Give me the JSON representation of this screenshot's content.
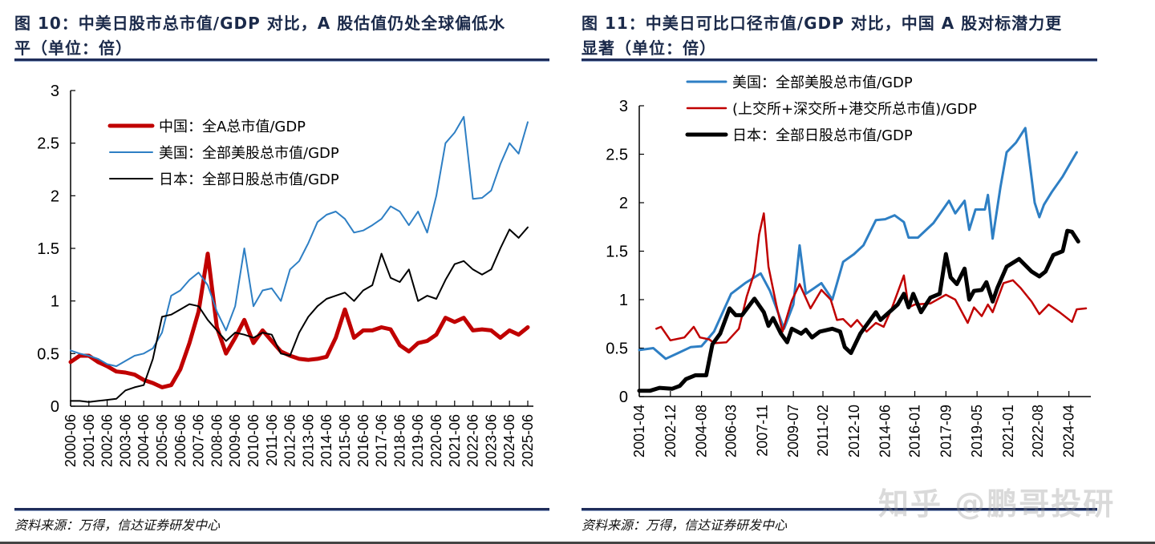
{
  "left": {
    "title_line1": "图 10：中美日股市总市值/GDP 对比，A 股估值仍处全球偏低水",
    "title_line2": "平（单位：倍）",
    "source": "资料来源：万得，信达证券研发中心"
  },
  "right": {
    "title_line1": "图 11：中美日可比口径市值/GDP 对比，中国 A 股对标潜力更",
    "title_line2": "显著（单位：倍）",
    "source": "资料来源：万得，信达证券研发中心"
  },
  "watermark": "知乎 @鹏哥投研",
  "chart_data": [
    {
      "type": "line",
      "ylim": [
        0,
        3
      ],
      "yticks": [
        "0",
        "0.5",
        "1",
        "1.5",
        "2",
        "2.5",
        "3"
      ],
      "xlim": [
        "2000-06",
        "2025-06"
      ],
      "xticks": [
        "2000-06",
        "2001-06",
        "2002-06",
        "2003-06",
        "2004-06",
        "2005-06",
        "2006-06",
        "2007-06",
        "2008-06",
        "2009-06",
        "2010-06",
        "2011-06",
        "2012-06",
        "2013-06",
        "2014-06",
        "2015-06",
        "2016-06",
        "2017-06",
        "2018-06",
        "2019-06",
        "2020-06",
        "2021-06",
        "2022-06",
        "2023-06",
        "2024-06",
        "2025-06"
      ],
      "legend_placement": "top-left",
      "x": [
        "2000-06",
        "2000-12",
        "2001-06",
        "2001-12",
        "2002-06",
        "2002-12",
        "2003-06",
        "2003-12",
        "2004-06",
        "2004-12",
        "2005-06",
        "2005-12",
        "2006-06",
        "2006-12",
        "2007-06",
        "2007-12",
        "2008-06",
        "2008-12",
        "2009-06",
        "2009-12",
        "2010-06",
        "2010-12",
        "2011-06",
        "2011-12",
        "2012-06",
        "2012-12",
        "2013-06",
        "2013-12",
        "2014-06",
        "2014-12",
        "2015-06",
        "2015-12",
        "2016-06",
        "2016-12",
        "2017-06",
        "2017-12",
        "2018-06",
        "2018-12",
        "2019-06",
        "2019-12",
        "2020-06",
        "2020-12",
        "2021-06",
        "2021-12",
        "2022-06",
        "2022-12",
        "2023-06",
        "2023-12",
        "2024-06",
        "2024-12",
        "2025-06"
      ],
      "series": [
        {
          "name": "中国：全A总市值/GDP",
          "color": "#c00000",
          "width": 5,
          "values": [
            0.42,
            0.48,
            0.48,
            0.42,
            0.38,
            0.33,
            0.32,
            0.3,
            0.25,
            0.22,
            0.18,
            0.2,
            0.35,
            0.6,
            0.9,
            1.45,
            0.75,
            0.5,
            0.65,
            0.82,
            0.6,
            0.72,
            0.62,
            0.52,
            0.48,
            0.45,
            0.44,
            0.45,
            0.47,
            0.65,
            0.92,
            0.65,
            0.72,
            0.72,
            0.75,
            0.73,
            0.58,
            0.52,
            0.6,
            0.62,
            0.68,
            0.84,
            0.8,
            0.84,
            0.72,
            0.73,
            0.72,
            0.65,
            0.72,
            0.68,
            0.75
          ]
        },
        {
          "name": "美国：全部美股总市值/GDP",
          "color": "#2e7fc4",
          "width": 2,
          "values": [
            0.53,
            0.5,
            0.48,
            0.45,
            0.4,
            0.38,
            0.43,
            0.48,
            0.5,
            0.55,
            0.7,
            1.05,
            1.1,
            1.2,
            1.27,
            1.15,
            0.9,
            0.72,
            0.95,
            1.5,
            0.95,
            1.1,
            1.12,
            1.0,
            1.3,
            1.38,
            1.55,
            1.75,
            1.82,
            1.85,
            1.78,
            1.65,
            1.67,
            1.72,
            1.78,
            1.9,
            1.85,
            1.72,
            1.85,
            1.65,
            2.0,
            2.5,
            2.6,
            2.75,
            1.97,
            1.98,
            2.05,
            2.3,
            2.5,
            2.4,
            2.7
          ]
        },
        {
          "name": "日本：全部日股总市值/GDP",
          "color": "#000000",
          "width": 2,
          "values": [
            0.05,
            0.05,
            0.04,
            0.05,
            0.06,
            0.07,
            0.15,
            0.18,
            0.2,
            0.45,
            0.85,
            0.87,
            0.92,
            0.97,
            0.95,
            0.82,
            0.72,
            0.62,
            0.7,
            0.68,
            0.65,
            0.7,
            0.68,
            0.5,
            0.48,
            0.7,
            0.85,
            0.95,
            1.02,
            1.05,
            1.08,
            1.0,
            1.1,
            1.15,
            1.45,
            1.22,
            1.18,
            1.3,
            1.0,
            1.05,
            1.02,
            1.2,
            1.35,
            1.38,
            1.3,
            1.25,
            1.3,
            1.5,
            1.68,
            1.6,
            1.7
          ]
        }
      ]
    },
    {
      "type": "line",
      "ylim": [
        0,
        3
      ],
      "yticks": [
        "0",
        "0.5",
        "1",
        "1.5",
        "2",
        "2.5",
        "3"
      ],
      "xlim": [
        "2001-04",
        "2025-03"
      ],
      "xticks": [
        "2001-04",
        "2002-12",
        "2004-08",
        "2006-03",
        "2007-11",
        "2009-07",
        "2011-02",
        "2012-10",
        "2014-06",
        "2016-01",
        "2017-09",
        "2019-05",
        "2021-01",
        "2022-08",
        "2024-04"
      ],
      "legend_placement": "top-left",
      "series": [
        {
          "name": "美国：全部美股总市值/GDP",
          "color": "#2e7fc4",
          "width": 3,
          "points": [
            [
              "2001-04",
              0.48
            ],
            [
              "2002-01",
              0.5
            ],
            [
              "2002-09",
              0.39
            ],
            [
              "2003-05",
              0.45
            ],
            [
              "2004-01",
              0.51
            ],
            [
              "2004-08",
              0.52
            ],
            [
              "2005-04",
              0.67
            ],
            [
              "2006-03",
              1.06
            ],
            [
              "2006-12",
              1.17
            ],
            [
              "2007-10",
              1.27
            ],
            [
              "2008-04",
              1.09
            ],
            [
              "2009-01",
              0.7
            ],
            [
              "2009-07",
              0.95
            ],
            [
              "2009-11",
              1.56
            ],
            [
              "2010-03",
              1.06
            ],
            [
              "2011-01",
              1.17
            ],
            [
              "2011-08",
              1.0
            ],
            [
              "2012-03",
              1.39
            ],
            [
              "2012-10",
              1.47
            ],
            [
              "2013-04",
              1.56
            ],
            [
              "2013-12",
              1.82
            ],
            [
              "2014-06",
              1.83
            ],
            [
              "2014-12",
              1.87
            ],
            [
              "2015-06",
              1.8
            ],
            [
              "2015-09",
              1.64
            ],
            [
              "2016-03",
              1.64
            ],
            [
              "2017-01",
              1.79
            ],
            [
              "2017-11",
              2.02
            ],
            [
              "2018-03",
              1.89
            ],
            [
              "2018-09",
              2.02
            ],
            [
              "2018-12",
              1.72
            ],
            [
              "2019-04",
              1.93
            ],
            [
              "2019-10",
              1.93
            ],
            [
              "2019-12",
              2.08
            ],
            [
              "2020-03",
              1.63
            ],
            [
              "2020-08",
              2.16
            ],
            [
              "2020-12",
              2.52
            ],
            [
              "2021-06",
              2.62
            ],
            [
              "2021-12",
              2.77
            ],
            [
              "2022-06",
              2.0
            ],
            [
              "2022-09",
              1.85
            ],
            [
              "2022-12",
              1.98
            ],
            [
              "2023-05",
              2.11
            ],
            [
              "2023-12",
              2.27
            ],
            [
              "2024-05",
              2.41
            ],
            [
              "2024-09",
              2.52
            ]
          ]
        },
        {
          "name": "(上交所+深交所+港交所总市值)/GDP",
          "color": "#c00000",
          "width": 2.5,
          "points": [
            [
              "2002-03",
              0.7
            ],
            [
              "2002-06",
              0.72
            ],
            [
              "2002-12",
              0.58
            ],
            [
              "2003-09",
              0.61
            ],
            [
              "2004-03",
              0.72
            ],
            [
              "2004-07",
              0.61
            ],
            [
              "2005-01",
              0.59
            ],
            [
              "2005-04",
              0.55
            ],
            [
              "2005-12",
              0.56
            ],
            [
              "2006-08",
              0.7
            ],
            [
              "2007-01",
              1.03
            ],
            [
              "2007-06",
              1.28
            ],
            [
              "2007-09",
              1.67
            ],
            [
              "2007-12",
              1.89
            ],
            [
              "2008-03",
              1.34
            ],
            [
              "2008-08",
              0.95
            ],
            [
              "2008-12",
              0.67
            ],
            [
              "2009-06",
              0.99
            ],
            [
              "2009-11",
              1.16
            ],
            [
              "2010-06",
              0.91
            ],
            [
              "2011-01",
              1.1
            ],
            [
              "2011-07",
              1.0
            ],
            [
              "2011-11",
              0.79
            ],
            [
              "2012-03",
              0.8
            ],
            [
              "2012-08",
              0.72
            ],
            [
              "2012-12",
              0.79
            ],
            [
              "2013-06",
              0.67
            ],
            [
              "2013-12",
              0.76
            ],
            [
              "2014-05",
              0.72
            ],
            [
              "2014-10",
              0.9
            ],
            [
              "2015-06",
              1.25
            ],
            [
              "2015-09",
              0.92
            ],
            [
              "2016-01",
              0.95
            ],
            [
              "2016-11",
              0.96
            ],
            [
              "2017-09",
              1.05
            ],
            [
              "2018-03",
              1.0
            ],
            [
              "2018-11",
              0.76
            ],
            [
              "2019-03",
              0.92
            ],
            [
              "2019-08",
              0.83
            ],
            [
              "2019-12",
              0.95
            ],
            [
              "2020-03",
              0.87
            ],
            [
              "2020-10",
              1.17
            ],
            [
              "2021-04",
              1.2
            ],
            [
              "2021-09",
              1.12
            ],
            [
              "2022-04",
              0.98
            ],
            [
              "2022-09",
              0.85
            ],
            [
              "2023-03",
              0.95
            ],
            [
              "2023-10",
              0.87
            ],
            [
              "2024-06",
              0.77
            ],
            [
              "2024-09",
              0.9
            ],
            [
              "2025-03",
              0.91
            ]
          ]
        },
        {
          "name": "日本：全部日股总市值/GDP",
          "color": "#000000",
          "width": 5,
          "points": [
            [
              "2001-04",
              0.06
            ],
            [
              "2001-11",
              0.06
            ],
            [
              "2002-05",
              0.09
            ],
            [
              "2003-01",
              0.08
            ],
            [
              "2003-06",
              0.11
            ],
            [
              "2003-10",
              0.18
            ],
            [
              "2004-04",
              0.22
            ],
            [
              "2004-11",
              0.22
            ],
            [
              "2005-03",
              0.54
            ],
            [
              "2005-08",
              0.65
            ],
            [
              "2006-02",
              0.91
            ],
            [
              "2006-06",
              0.84
            ],
            [
              "2006-10",
              0.84
            ],
            [
              "2007-06",
              1.01
            ],
            [
              "2007-12",
              0.87
            ],
            [
              "2008-03",
              0.73
            ],
            [
              "2008-06",
              0.81
            ],
            [
              "2008-11",
              0.65
            ],
            [
              "2009-03",
              0.56
            ],
            [
              "2009-06",
              0.7
            ],
            [
              "2009-12",
              0.65
            ],
            [
              "2010-03",
              0.69
            ],
            [
              "2010-07",
              0.61
            ],
            [
              "2010-12",
              0.67
            ],
            [
              "2011-08",
              0.7
            ],
            [
              "2012-01",
              0.67
            ],
            [
              "2012-04",
              0.51
            ],
            [
              "2012-08",
              0.45
            ],
            [
              "2013-02",
              0.65
            ],
            [
              "2013-12",
              0.87
            ],
            [
              "2014-03",
              0.79
            ],
            [
              "2015-02",
              0.95
            ],
            [
              "2015-06",
              1.06
            ],
            [
              "2015-09",
              0.92
            ],
            [
              "2015-12",
              1.06
            ],
            [
              "2016-05",
              0.87
            ],
            [
              "2016-11",
              1.02
            ],
            [
              "2017-05",
              1.06
            ],
            [
              "2017-09",
              1.47
            ],
            [
              "2017-12",
              1.23
            ],
            [
              "2018-04",
              1.16
            ],
            [
              "2018-09",
              1.32
            ],
            [
              "2018-12",
              1.0
            ],
            [
              "2019-03",
              1.09
            ],
            [
              "2019-08",
              1.1
            ],
            [
              "2019-11",
              1.18
            ],
            [
              "2020-03",
              0.98
            ],
            [
              "2020-06",
              1.12
            ],
            [
              "2020-12",
              1.34
            ],
            [
              "2021-08",
              1.42
            ],
            [
              "2022-04",
              1.29
            ],
            [
              "2022-09",
              1.24
            ],
            [
              "2023-01",
              1.29
            ],
            [
              "2023-06",
              1.46
            ],
            [
              "2023-12",
              1.5
            ],
            [
              "2024-03",
              1.71
            ],
            [
              "2024-06",
              1.7
            ],
            [
              "2024-10",
              1.6
            ]
          ]
        }
      ]
    }
  ]
}
